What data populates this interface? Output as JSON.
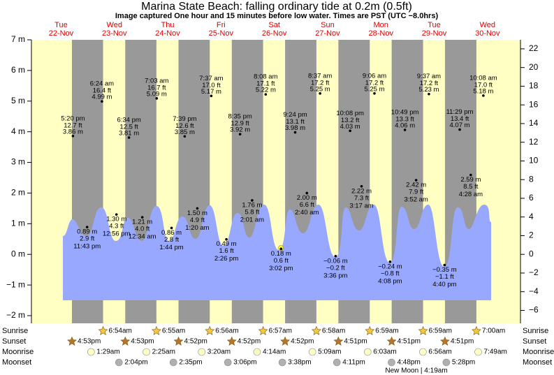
{
  "chart_data": {
    "type": "tide",
    "title": "Marina State Beach: falling  ordinary tide at 0.2m (0.5ft)",
    "subtitle": "Image captured One hour and 15 minutes before low water. Times are PST (UTC −8.0hrs)",
    "days": [
      {
        "name": "Tue",
        "date": "22-Nov"
      },
      {
        "name": "Wed",
        "date": "23-Nov"
      },
      {
        "name": "Thu",
        "date": "24-Nov"
      },
      {
        "name": "Fri",
        "date": "25-Nov"
      },
      {
        "name": "Sat",
        "date": "26-Nov"
      },
      {
        "name": "Sun",
        "date": "27-Nov"
      },
      {
        "name": "Mon",
        "date": "28-Nov"
      },
      {
        "name": "Tue",
        "date": "29-Nov"
      },
      {
        "name": "Wed",
        "date": "30-Nov"
      }
    ],
    "ylim": [
      -2,
      7
    ],
    "yticks": [
      {
        "value": -2,
        "label": "−2 m"
      },
      {
        "value": -1,
        "label": "−1 m"
      },
      {
        "value": 0,
        "label": "0 m"
      },
      {
        "value": 1,
        "label": "1 m"
      },
      {
        "value": 2,
        "label": "2 m"
      },
      {
        "value": 3,
        "label": "3 m"
      },
      {
        "value": 4,
        "label": "4 m"
      },
      {
        "value": 5,
        "label": "5 m"
      },
      {
        "value": 6,
        "label": "6 m"
      },
      {
        "value": 7,
        "label": "7 m"
      }
    ],
    "y2lim": [
      -6.5617,
      22.9659
    ],
    "y2ticks": [
      {
        "value": -6,
        "label": "−6"
      },
      {
        "value": -4,
        "label": "−4"
      },
      {
        "value": -2,
        "label": "−2"
      },
      0,
      2,
      4,
      6,
      8,
      10,
      12,
      14,
      16,
      18,
      20,
      22
    ],
    "extremes": [
      {
        "date": "22-Nov",
        "time": "5:20 pm",
        "ft": "12.7 ft",
        "m": 3.86,
        "m_label": "3.86 m"
      },
      {
        "date": "22-Nov",
        "time": "11:43 pm",
        "ft": "2.9 ft",
        "m": 0.89,
        "m_label": "0.89 m"
      },
      {
        "date": "23-Nov",
        "time": "6:24 am",
        "ft": "16.4 ft",
        "m": 4.99,
        "m_label": "4.99 m"
      },
      {
        "date": "23-Nov",
        "time": "12:56 pm",
        "ft": "4.3 ft",
        "m": 1.3,
        "m_label": "1.30 m"
      },
      {
        "date": "23-Nov",
        "time": "6:34 pm",
        "ft": "12.5 ft",
        "m": 3.81,
        "m_label": "3.81 m"
      },
      {
        "date": "24-Nov",
        "time": "12:34 am",
        "ft": "4.0 ft",
        "m": 1.21,
        "m_label": "1.21 m"
      },
      {
        "date": "24-Nov",
        "time": "7:03 am",
        "ft": "16.7 ft",
        "m": 5.09,
        "m_label": "5.09 m"
      },
      {
        "date": "24-Nov",
        "time": "1:44 pm",
        "ft": "2.8 ft",
        "m": 0.86,
        "m_label": "0.86 m"
      },
      {
        "date": "24-Nov",
        "time": "7:39 pm",
        "ft": "12.6 ft",
        "m": 3.85,
        "m_label": "3.85 m"
      },
      {
        "date": "25-Nov",
        "time": "1:20 am",
        "ft": "4.9 ft",
        "m": 1.5,
        "m_label": "1.50 m"
      },
      {
        "date": "25-Nov",
        "time": "7:37 am",
        "ft": "17.0 ft",
        "m": 5.17,
        "m_label": "5.17 m"
      },
      {
        "date": "25-Nov",
        "time": "2:26 pm",
        "ft": "1.6 ft",
        "m": 0.49,
        "m_label": "0.49 m"
      },
      {
        "date": "25-Nov",
        "time": "8:35 pm",
        "ft": "12.9 ft",
        "m": 3.92,
        "m_label": "3.92 m"
      },
      {
        "date": "26-Nov",
        "time": "2:01 am",
        "ft": "5.8 ft",
        "m": 1.76,
        "m_label": "1.76 m"
      },
      {
        "date": "26-Nov",
        "time": "8:08 am",
        "ft": "17.1 ft",
        "m": 5.22,
        "m_label": "5.22 m"
      },
      {
        "date": "26-Nov",
        "time": "3:02 pm",
        "ft": "0.6 ft",
        "m": 0.18,
        "m_label": "0.18 m"
      },
      {
        "date": "26-Nov",
        "time": "9:24 pm",
        "ft": "13.1 ft",
        "m": 3.98,
        "m_label": "3.98 m"
      },
      {
        "date": "27-Nov",
        "time": "2:40 am",
        "ft": "6.6 ft",
        "m": 2.0,
        "m_label": "2.00 m"
      },
      {
        "date": "27-Nov",
        "time": "8:37 am",
        "ft": "17.2 ft",
        "m": 5.25,
        "m_label": "5.25 m"
      },
      {
        "date": "27-Nov",
        "time": "3:36 pm",
        "ft": "−0.2 ft",
        "m": -0.06,
        "m_label": "−0.06 m"
      },
      {
        "date": "27-Nov",
        "time": "10:08 pm",
        "ft": "13.2 ft",
        "m": 4.03,
        "m_label": "4.03 m"
      },
      {
        "date": "28-Nov",
        "time": "3:17 am",
        "ft": "7.3 ft",
        "m": 2.22,
        "m_label": "2.22 m"
      },
      {
        "date": "28-Nov",
        "time": "9:06 am",
        "ft": "17.2 ft",
        "m": 5.25,
        "m_label": "5.25 m"
      },
      {
        "date": "28-Nov",
        "time": "4:08 pm",
        "ft": "−0.8 ft",
        "m": -0.24,
        "m_label": "−0.24 m"
      },
      {
        "date": "28-Nov",
        "time": "10:49 pm",
        "ft": "13.3 ft",
        "m": 4.06,
        "m_label": "4.06 m"
      },
      {
        "date": "29-Nov",
        "time": "3:52 am",
        "ft": "7.9 ft",
        "m": 2.42,
        "m_label": "2.42 m"
      },
      {
        "date": "29-Nov",
        "time": "9:37 am",
        "ft": "17.2 ft",
        "m": 5.23,
        "m_label": "5.23 m"
      },
      {
        "date": "29-Nov",
        "time": "4:40 pm",
        "ft": "−1.1 ft",
        "m": -0.35,
        "m_label": "−0.35 m"
      },
      {
        "date": "29-Nov",
        "time": "11:29 pm",
        "ft": "13.4 ft",
        "m": 4.07,
        "m_label": "4.07 m"
      },
      {
        "date": "30-Nov",
        "time": "4:28 am",
        "ft": "8.5 ft",
        "m": 2.59,
        "m_label": "2.59 m"
      },
      {
        "date": "30-Nov",
        "time": "10:08 am",
        "ft": "17.0 ft",
        "m": 5.18,
        "m_label": "5.18 m"
      }
    ],
    "row_labels": [
      "Sunrise",
      "Sunset",
      "Moonrise",
      "Moonset"
    ],
    "sunrise": [
      {
        "date": "23-Nov",
        "time": "6:54am"
      },
      {
        "date": "24-Nov",
        "time": "6:55am"
      },
      {
        "date": "25-Nov",
        "time": "6:56am"
      },
      {
        "date": "26-Nov",
        "time": "6:57am"
      },
      {
        "date": "27-Nov",
        "time": "6:58am"
      },
      {
        "date": "28-Nov",
        "time": "6:59am"
      },
      {
        "date": "29-Nov",
        "time": "6:59am"
      },
      {
        "date": "30-Nov",
        "time": "7:00am"
      }
    ],
    "sunset": [
      {
        "date": "22-Nov",
        "time": "4:53pm"
      },
      {
        "date": "23-Nov",
        "time": "4:53pm"
      },
      {
        "date": "24-Nov",
        "time": "4:52pm"
      },
      {
        "date": "25-Nov",
        "time": "4:52pm"
      },
      {
        "date": "26-Nov",
        "time": "4:52pm"
      },
      {
        "date": "27-Nov",
        "time": "4:51pm"
      },
      {
        "date": "28-Nov",
        "time": "4:51pm"
      },
      {
        "date": "29-Nov",
        "time": "4:51pm"
      }
    ],
    "moonrise": [
      {
        "date": "23-Nov",
        "time": "1:29am"
      },
      {
        "date": "24-Nov",
        "time": "2:25am"
      },
      {
        "date": "25-Nov",
        "time": "3:20am"
      },
      {
        "date": "26-Nov",
        "time": "4:14am"
      },
      {
        "date": "27-Nov",
        "time": "5:09am"
      },
      {
        "date": "28-Nov",
        "time": "6:03am"
      },
      {
        "date": "29-Nov",
        "time": "6:56am"
      },
      {
        "date": "30-Nov",
        "time": "7:49am"
      }
    ],
    "moonset": [
      {
        "date": "23-Nov",
        "time": "2:04pm"
      },
      {
        "date": "24-Nov",
        "time": "2:35pm"
      },
      {
        "date": "25-Nov",
        "time": "3:06pm"
      },
      {
        "date": "26-Nov",
        "time": "3:38pm"
      },
      {
        "date": "27-Nov",
        "time": "4:11pm"
      },
      {
        "date": "28-Nov",
        "time": "4:48pm"
      },
      {
        "date": "29-Nov",
        "time": "5:28pm"
      }
    ],
    "moon_phase": "New Moon | 4:19am"
  }
}
